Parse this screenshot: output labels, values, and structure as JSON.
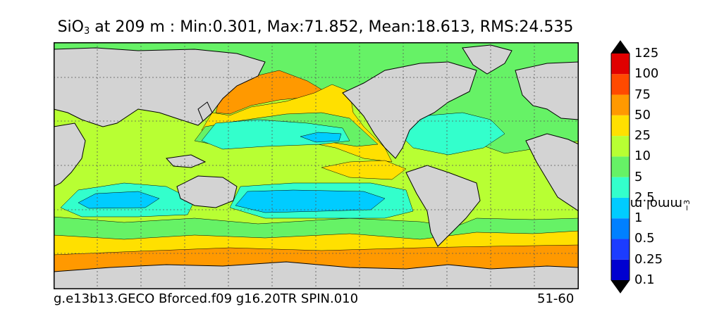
{
  "title": {
    "prefix": "SiO",
    "subscript": "3",
    "rest": " at 209 m : Min:0.301, Max:71.852, Mean:18.613, RMS:24.535"
  },
  "colorbar": {
    "units": "mmol m",
    "units_exp": "−3",
    "levels": [
      "0.1",
      "0.25",
      "0.5",
      "1",
      "2.5",
      "5",
      "10",
      "25",
      "50",
      "75",
      "100",
      "125"
    ],
    "colors": [
      "#00008a",
      "#0000d0",
      "#1c3cff",
      "#0080ff",
      "#00ccff",
      "#33ffcc",
      "#66f266",
      "#b8ff33",
      "#ffe000",
      "#ff9900",
      "#ff4a00",
      "#e00000",
      "#7a0000"
    ]
  },
  "footer": {
    "left": "g.e13b13.GECO Bforced.f09 g16.20TR SPIN.010",
    "right": "51-60"
  },
  "map": {
    "land_color": "#d3d3d3",
    "coast_color": "#000000"
  }
}
